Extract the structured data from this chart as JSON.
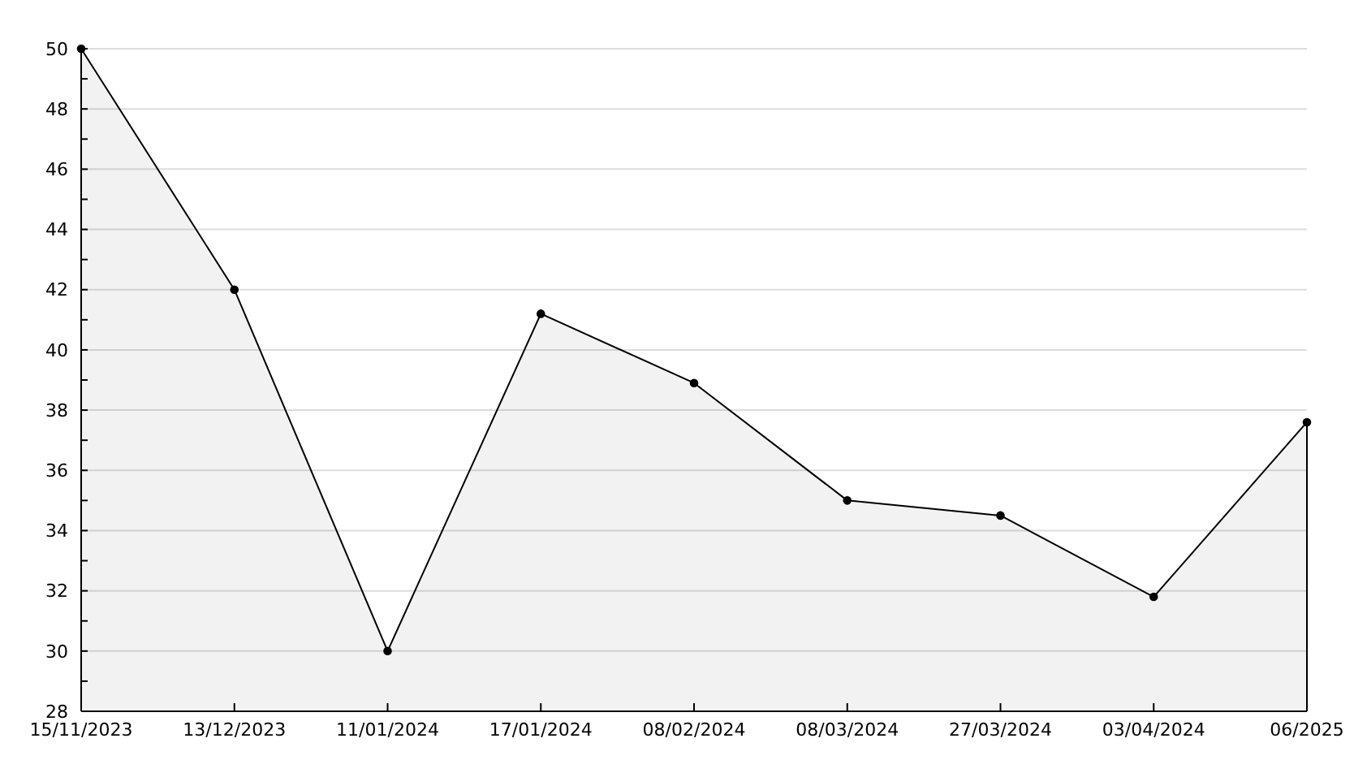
{
  "chart_data": {
    "type": "area",
    "categories": [
      "15/11/2023",
      "13/12/2023",
      "11/01/2024",
      "17/01/2024",
      "08/02/2024",
      "08/03/2024",
      "27/03/2024",
      "03/04/2024",
      "06/2025"
    ],
    "series": [
      {
        "color": "#000000",
        "values": [
          50,
          42,
          30,
          41.2,
          38.9,
          35,
          34.5,
          31.8,
          37.6
        ]
      }
    ],
    "ylim": [
      28,
      50
    ],
    "yticks": [
      28,
      {
        "value": 29,
        "label": null
      },
      30,
      {
        "value": 31,
        "label": null
      },
      32,
      {
        "value": 33,
        "label": null
      },
      34,
      {
        "value": 35,
        "label": null
      },
      36,
      {
        "value": 37,
        "label": null
      },
      38,
      {
        "value": 39,
        "label": null
      },
      40,
      {
        "value": 41,
        "label": null
      },
      42,
      {
        "value": 43,
        "label": null
      },
      44,
      {
        "value": 45,
        "label": null
      },
      46,
      {
        "value": 47,
        "label": null
      },
      48,
      {
        "value": 49,
        "label": null
      },
      50
    ],
    "grid": "y",
    "marker": "circle",
    "line_style": "solid"
  }
}
